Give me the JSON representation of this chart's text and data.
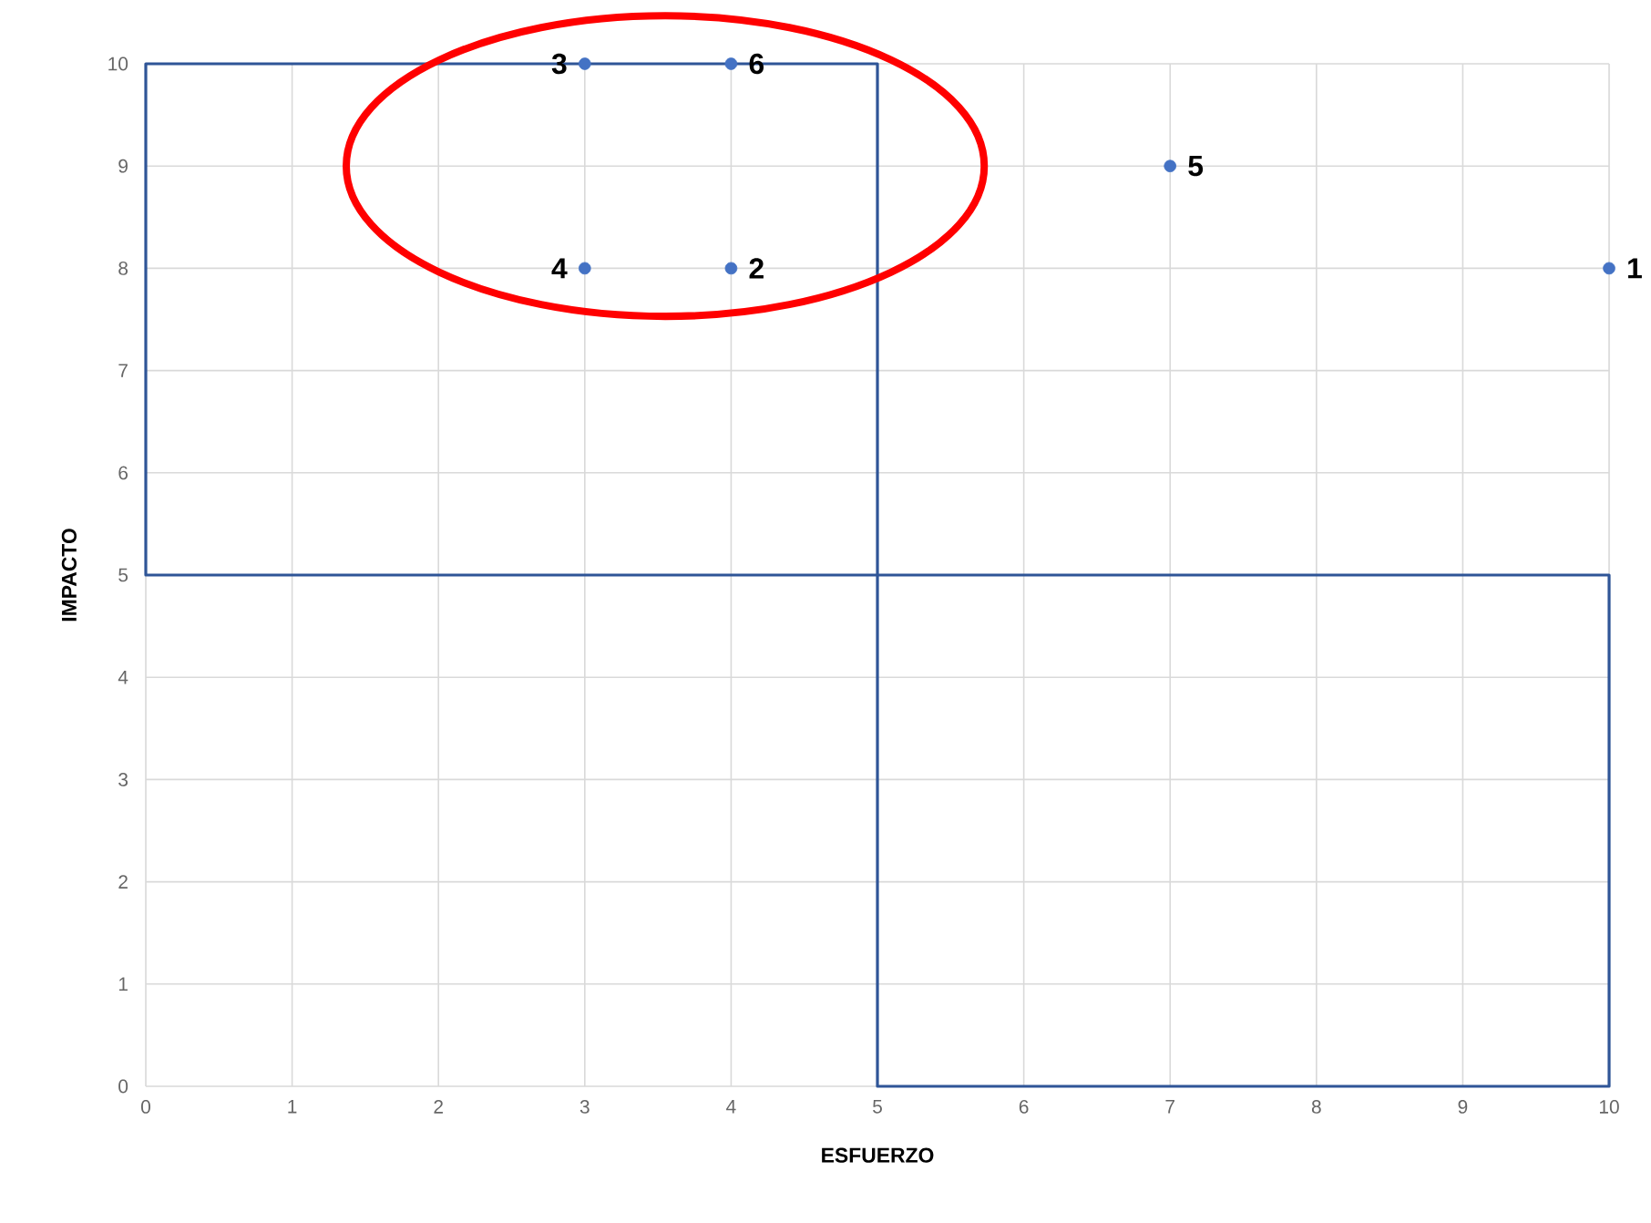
{
  "chart_data": {
    "type": "scatter",
    "xlabel": "ESFUERZO",
    "ylabel": "IMPACTO",
    "xlim": [
      0,
      10
    ],
    "ylim": [
      0,
      10
    ],
    "xticks": [
      0,
      1,
      2,
      3,
      4,
      5,
      6,
      7,
      8,
      9,
      10
    ],
    "yticks": [
      0,
      1,
      2,
      3,
      4,
      5,
      6,
      7,
      8,
      9,
      10
    ],
    "grid": true,
    "series": [
      {
        "type": "scatter",
        "marker": "circle",
        "color": "#4472c4",
        "x": [
          10,
          4,
          3,
          3,
          7,
          4
        ],
        "values": [
          8,
          8,
          10,
          8,
          9,
          10
        ]
      }
    ],
    "annotations": [
      {
        "text": "1",
        "x": 10,
        "y": 8
      },
      {
        "text": "2",
        "x": 4,
        "y": 8
      },
      {
        "text": "3",
        "x": 3,
        "y": 10
      },
      {
        "text": "4",
        "x": 3,
        "y": 8
      },
      {
        "text": "5",
        "x": 7,
        "y": 9
      },
      {
        "text": "6",
        "x": 4,
        "y": 10
      }
    ]
  }
}
